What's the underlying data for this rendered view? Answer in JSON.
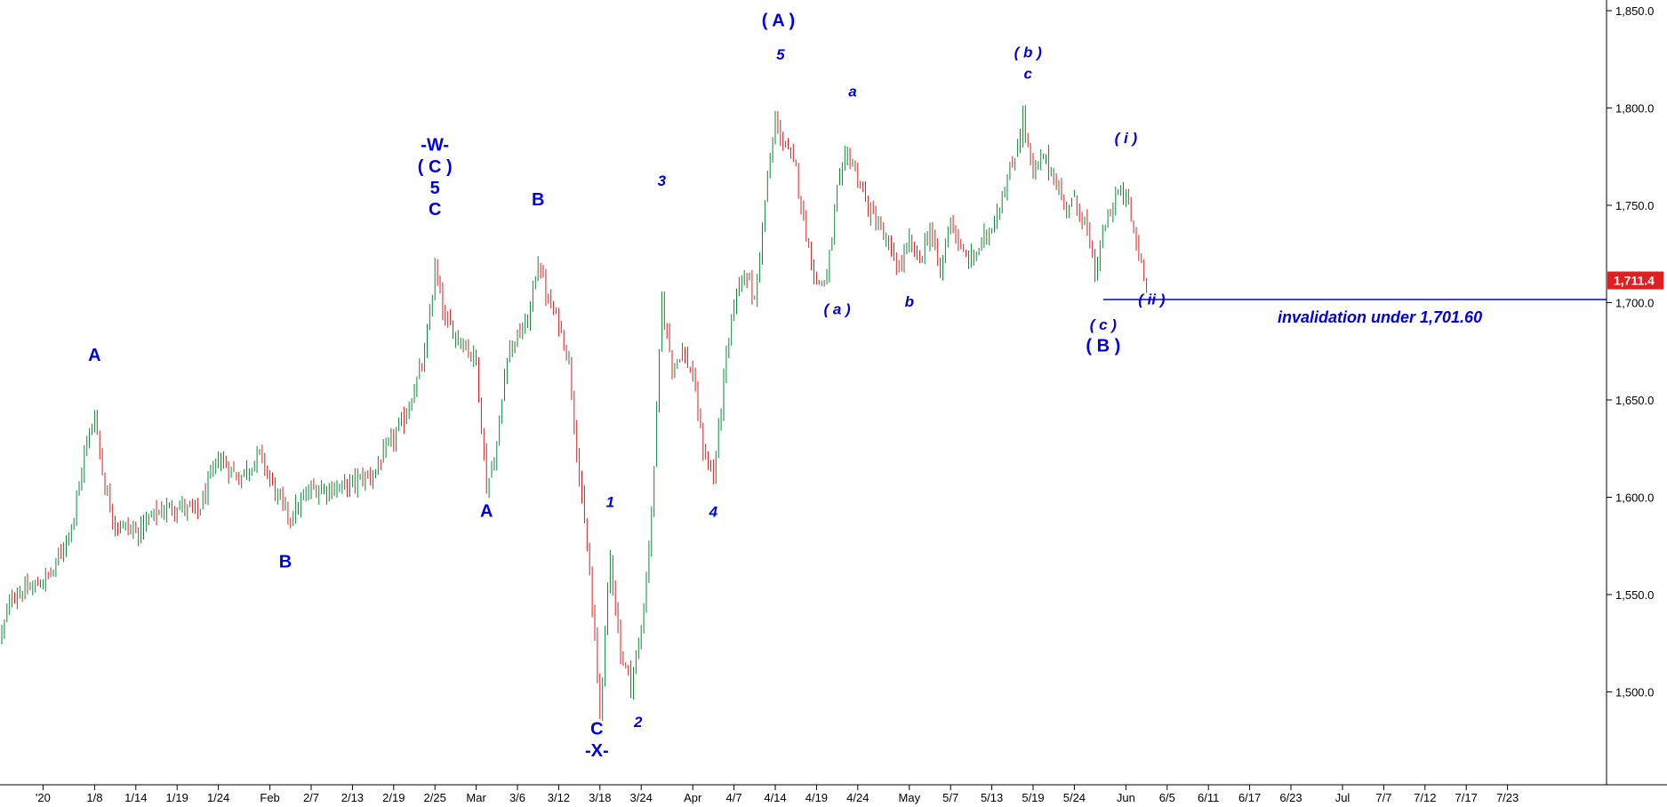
{
  "chart_data": {
    "type": "candlestick",
    "title": "",
    "xlabel": "",
    "ylabel": "",
    "ylim": [
      1460,
      1860
    ],
    "y_ticks": [
      "1,850.0",
      "1,800.0",
      "1,750.0",
      "1,700.0",
      "1,650.0",
      "1,600.0",
      "1,550.0",
      "1,500.0"
    ],
    "y_tick_values": [
      1850,
      1800,
      1750,
      1700,
      1650,
      1600,
      1550,
      1500
    ],
    "x_ticks": [
      "'20",
      "1/8",
      "1/14",
      "1/19",
      "1/24",
      "Feb",
      "2/7",
      "2/13",
      "2/19",
      "2/25",
      "Mar",
      "3/6",
      "3/12",
      "3/18",
      "3/24",
      "Apr",
      "4/7",
      "4/14",
      "4/19",
      "4/24",
      "May",
      "5/7",
      "5/13",
      "5/19",
      "5/24",
      "Jun",
      "6/5",
      "6/11",
      "6/17",
      "6/23",
      "Jul",
      "7/7",
      "7/12",
      "7/17",
      "7/23"
    ],
    "x_tick_index": [
      4,
      9,
      13,
      17,
      21,
      26,
      30,
      34,
      38,
      42,
      46,
      50,
      54,
      58,
      62,
      67,
      71,
      75,
      79,
      83,
      88,
      92,
      96,
      100,
      104,
      109,
      113,
      117,
      121,
      125,
      130,
      134,
      138,
      142,
      146
    ],
    "last_price": 1711.4,
    "last_price_label": "1,711.4",
    "invalidation_level": 1701.6,
    "invalidation_text": "invalidation under 1,701.60",
    "grid": false,
    "colors": {
      "up": "#0a8a3a",
      "down": "#d42020",
      "annotation": "#0000e0",
      "price_tag": "#e02020",
      "line": "#0000e0"
    },
    "anchors": [
      {
        "i": 0,
        "p": 1530
      },
      {
        "i": 1,
        "p": 1550
      },
      {
        "i": 3,
        "p": 1553
      },
      {
        "i": 5,
        "p": 1562
      },
      {
        "i": 7,
        "p": 1590
      },
      {
        "i": 8,
        "p": 1622
      },
      {
        "i": 9,
        "p": 1643
      },
      {
        "i": 10,
        "p": 1605
      },
      {
        "i": 11,
        "p": 1587
      },
      {
        "i": 13,
        "p": 1582
      },
      {
        "i": 15,
        "p": 1592
      },
      {
        "i": 17,
        "p": 1596
      },
      {
        "i": 19,
        "p": 1592
      },
      {
        "i": 21,
        "p": 1620
      },
      {
        "i": 23,
        "p": 1610
      },
      {
        "i": 25,
        "p": 1622
      },
      {
        "i": 27,
        "p": 1597
      },
      {
        "i": 28,
        "p": 1590
      },
      {
        "i": 30,
        "p": 1604
      },
      {
        "i": 33,
        "p": 1605
      },
      {
        "i": 36,
        "p": 1612
      },
      {
        "i": 39,
        "p": 1640
      },
      {
        "i": 41,
        "p": 1672
      },
      {
        "i": 42,
        "p": 1717
      },
      {
        "i": 43,
        "p": 1690
      },
      {
        "i": 45,
        "p": 1678
      },
      {
        "i": 46,
        "p": 1670
      },
      {
        "i": 47,
        "p": 1605
      },
      {
        "i": 48,
        "p": 1625
      },
      {
        "i": 49,
        "p": 1675
      },
      {
        "i": 51,
        "p": 1690
      },
      {
        "i": 52,
        "p": 1722
      },
      {
        "i": 53,
        "p": 1700
      },
      {
        "i": 54,
        "p": 1690
      },
      {
        "i": 55,
        "p": 1670
      },
      {
        "i": 56,
        "p": 1610
      },
      {
        "i": 57,
        "p": 1560
      },
      {
        "i": 58,
        "p": 1490
      },
      {
        "i": 59,
        "p": 1570
      },
      {
        "i": 60,
        "p": 1520
      },
      {
        "i": 61,
        "p": 1505
      },
      {
        "i": 62,
        "p": 1530
      },
      {
        "i": 63,
        "p": 1590
      },
      {
        "i": 64,
        "p": 1700
      },
      {
        "i": 65,
        "p": 1668
      },
      {
        "i": 66,
        "p": 1675
      },
      {
        "i": 67,
        "p": 1662
      },
      {
        "i": 68,
        "p": 1625
      },
      {
        "i": 69,
        "p": 1610
      },
      {
        "i": 70,
        "p": 1660
      },
      {
        "i": 71,
        "p": 1700
      },
      {
        "i": 72,
        "p": 1718
      },
      {
        "i": 73,
        "p": 1700
      },
      {
        "i": 74,
        "p": 1752
      },
      {
        "i": 75,
        "p": 1793
      },
      {
        "i": 76,
        "p": 1780
      },
      {
        "i": 77,
        "p": 1768
      },
      {
        "i": 78,
        "p": 1735
      },
      {
        "i": 79,
        "p": 1710
      },
      {
        "i": 80,
        "p": 1712
      },
      {
        "i": 81,
        "p": 1757
      },
      {
        "i": 82,
        "p": 1777
      },
      {
        "i": 83,
        "p": 1765
      },
      {
        "i": 84,
        "p": 1748
      },
      {
        "i": 85,
        "p": 1740
      },
      {
        "i": 86,
        "p": 1727
      },
      {
        "i": 87,
        "p": 1718
      },
      {
        "i": 88,
        "p": 1730
      },
      {
        "i": 89,
        "p": 1722
      },
      {
        "i": 90,
        "p": 1738
      },
      {
        "i": 91,
        "p": 1715
      },
      {
        "i": 92,
        "p": 1745
      },
      {
        "i": 93,
        "p": 1725
      },
      {
        "i": 94,
        "p": 1722
      },
      {
        "i": 95,
        "p": 1730
      },
      {
        "i": 96,
        "p": 1740
      },
      {
        "i": 97,
        "p": 1755
      },
      {
        "i": 98,
        "p": 1770
      },
      {
        "i": 99,
        "p": 1795
      },
      {
        "i": 100,
        "p": 1765
      },
      {
        "i": 101,
        "p": 1775
      },
      {
        "i": 102,
        "p": 1765
      },
      {
        "i": 103,
        "p": 1750
      },
      {
        "i": 104,
        "p": 1752
      },
      {
        "i": 105,
        "p": 1742
      },
      {
        "i": 106,
        "p": 1715
      },
      {
        "i": 107,
        "p": 1740
      },
      {
        "i": 108,
        "p": 1755
      },
      {
        "i": 109,
        "p": 1755
      },
      {
        "i": 110,
        "p": 1730
      },
      {
        "i": 111,
        "p": 1711.4
      }
    ],
    "wave_labels": [
      {
        "text": "A",
        "i": 9,
        "p": 1670,
        "style": "bold"
      },
      {
        "text": "B",
        "i": 27.5,
        "p": 1564,
        "style": "bold"
      },
      {
        "text": "-W-",
        "i": 42,
        "p": 1778,
        "style": "bold"
      },
      {
        "text": "( C )",
        "i": 42,
        "p": 1767,
        "style": "bold"
      },
      {
        "text": "5",
        "i": 42,
        "p": 1756,
        "style": "bold"
      },
      {
        "text": "C",
        "i": 42,
        "p": 1745,
        "style": "bold"
      },
      {
        "text": "A",
        "i": 47,
        "p": 1590,
        "style": "bold"
      },
      {
        "text": "B",
        "i": 52,
        "p": 1750,
        "style": "bold"
      },
      {
        "text": "1",
        "i": 59,
        "p": 1595,
        "style": "ital"
      },
      {
        "text": "C",
        "i": 57.7,
        "p": 1478,
        "style": "bold"
      },
      {
        "text": "-X-",
        "i": 57.7,
        "p": 1467,
        "style": "bold"
      },
      {
        "text": "2",
        "i": 61.7,
        "p": 1482,
        "style": "ital"
      },
      {
        "text": "3",
        "i": 64,
        "p": 1760,
        "style": "ital"
      },
      {
        "text": "4",
        "i": 69,
        "p": 1590,
        "style": "ital"
      },
      {
        "text": "( A )",
        "i": 75.3,
        "p": 1842,
        "style": "bold"
      },
      {
        "text": "5",
        "i": 75.5,
        "p": 1825,
        "style": "ital"
      },
      {
        "text": "a",
        "i": 82.5,
        "p": 1806,
        "style": "ital"
      },
      {
        "text": "( a )",
        "i": 81,
        "p": 1694,
        "style": "ital"
      },
      {
        "text": "b",
        "i": 88,
        "p": 1698,
        "style": "ital"
      },
      {
        "text": "( b )",
        "i": 99.5,
        "p": 1826,
        "style": "ital"
      },
      {
        "text": "c",
        "i": 99.5,
        "p": 1815,
        "style": "ital"
      },
      {
        "text": "( i )",
        "i": 109,
        "p": 1782,
        "style": "ital"
      },
      {
        "text": "( c )",
        "i": 106.8,
        "p": 1686,
        "style": "ital"
      },
      {
        "text": "( B )",
        "i": 106.8,
        "p": 1675,
        "style": "bold"
      },
      {
        "text": "( ii )",
        "i": 111.5,
        "p": 1699,
        "style": "ital"
      }
    ]
  }
}
